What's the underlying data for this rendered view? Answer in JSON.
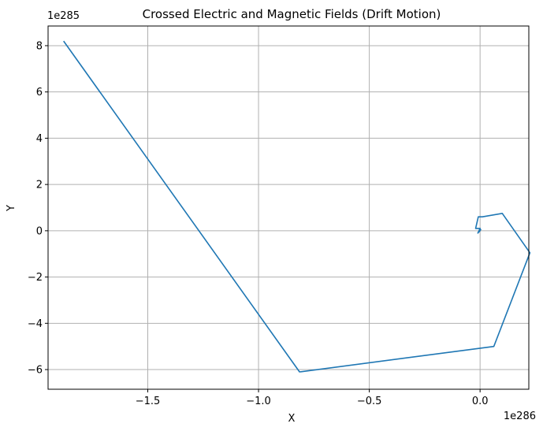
{
  "chart_data": {
    "type": "line",
    "title": "Crossed Electric and Magnetic Fields (Drift Motion)",
    "xlabel": "X",
    "ylabel": "Y",
    "x_offset_text": "1e286",
    "y_offset_text": "1e285",
    "xlim": [
      -1.95,
      0.22
    ],
    "ylim": [
      -6.85,
      8.85
    ],
    "xticks": [
      -1.5,
      -1.0,
      -0.5,
      0.0
    ],
    "xtick_labels": [
      "−1.5",
      "−1.0",
      "−0.5",
      "0.0"
    ],
    "yticks": [
      -6,
      -4,
      -2,
      0,
      2,
      4,
      6,
      8
    ],
    "ytick_labels": [
      "−6",
      "−4",
      "−2",
      "0",
      "2",
      "4",
      "6",
      "8"
    ],
    "grid": true,
    "series": [
      {
        "color": "#1f77b4",
        "x": [
          0.0,
          -0.005,
          0.003,
          -0.01,
          0.0,
          -0.02,
          -0.008,
          0.01,
          0.1,
          0.225,
          0.062,
          -0.815,
          -1.88
        ],
        "y": [
          0.0,
          -0.05,
          0.05,
          -0.1,
          0.1,
          0.1,
          0.6,
          0.6,
          0.75,
          -0.95,
          -5.0,
          -6.1,
          8.2
        ]
      }
    ]
  }
}
